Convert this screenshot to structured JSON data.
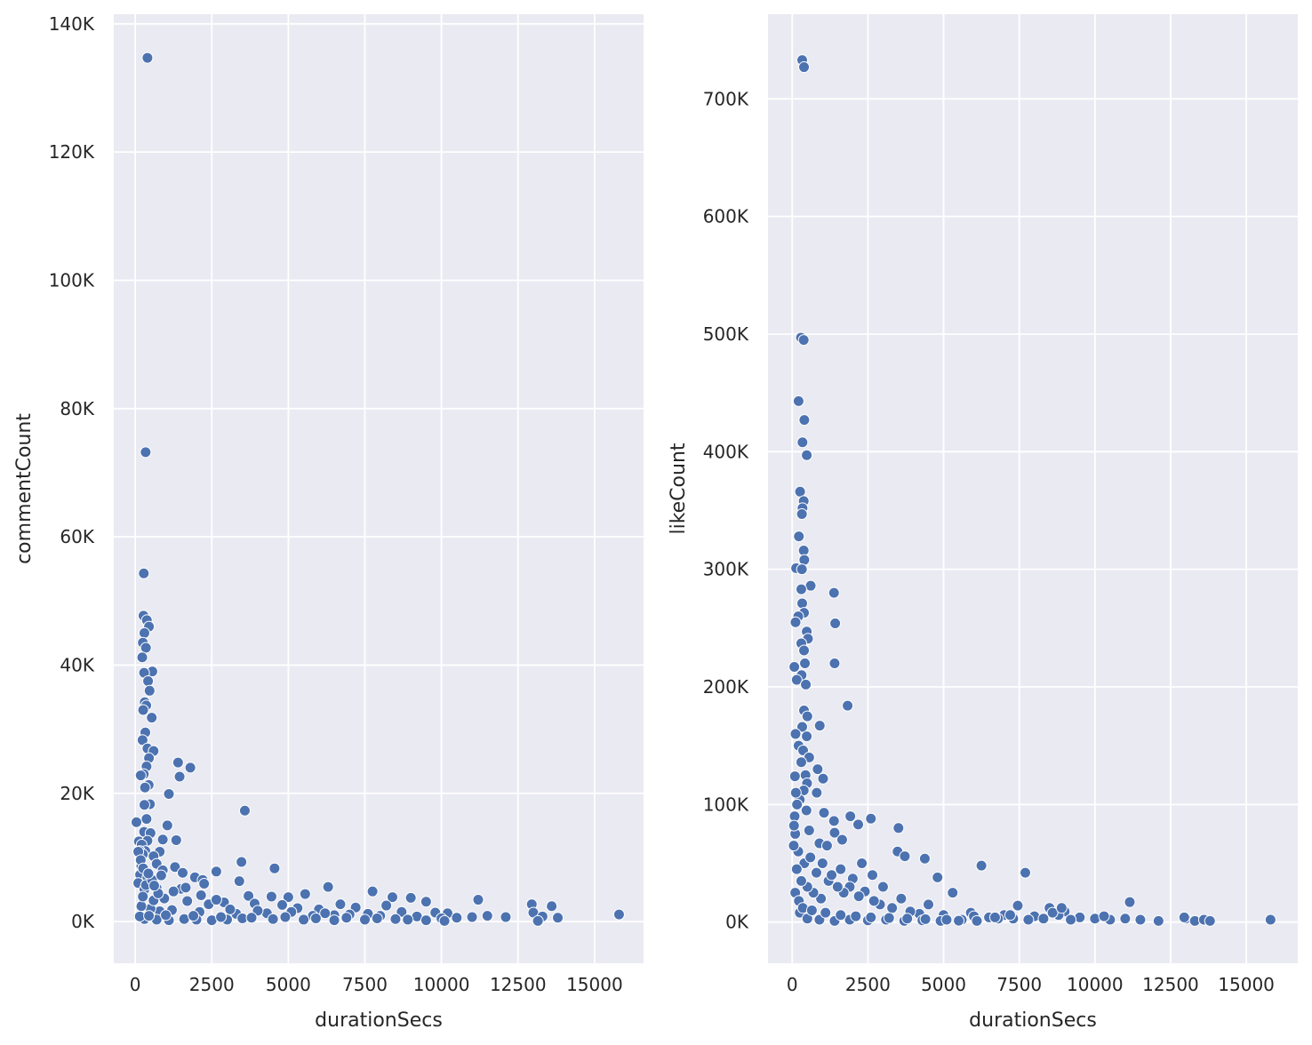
{
  "chart_data": [
    {
      "type": "scatter",
      "xlabel": "durationSecs",
      "ylabel": "commentCount",
      "xlim": [
        -700,
        16600
      ],
      "ylim": [
        -6500,
        141500
      ],
      "xticks": [
        0,
        2500,
        5000,
        7500,
        10000,
        12500,
        15000
      ],
      "xtick_labels": [
        "0",
        "2500",
        "5000",
        "7500",
        "10000",
        "12500",
        "15000"
      ],
      "yticks": [
        0,
        20000,
        40000,
        60000,
        80000,
        100000,
        120000,
        140000
      ],
      "ytick_labels": [
        "0K",
        "20K",
        "40K",
        "60K",
        "80K",
        "100K",
        "120K",
        "140K"
      ],
      "grid": true,
      "color": "#4c72b0",
      "points": [
        [
          400,
          134700
        ],
        [
          340,
          73200
        ],
        [
          280,
          54300
        ],
        [
          270,
          47700
        ],
        [
          380,
          47000
        ],
        [
          450,
          46000
        ],
        [
          300,
          45000
        ],
        [
          250,
          43500
        ],
        [
          350,
          42700
        ],
        [
          230,
          41200
        ],
        [
          560,
          39000
        ],
        [
          290,
          38800
        ],
        [
          420,
          37500
        ],
        [
          470,
          36000
        ],
        [
          310,
          34200
        ],
        [
          360,
          33700
        ],
        [
          260,
          33000
        ],
        [
          540,
          31800
        ],
        [
          330,
          29500
        ],
        [
          240,
          28300
        ],
        [
          400,
          27000
        ],
        [
          600,
          26600
        ],
        [
          450,
          25500
        ],
        [
          1400,
          24800
        ],
        [
          370,
          24200
        ],
        [
          1800,
          24000
        ],
        [
          280,
          23000
        ],
        [
          180,
          22800
        ],
        [
          1450,
          22600
        ],
        [
          440,
          21300
        ],
        [
          320,
          20900
        ],
        [
          1100,
          19900
        ],
        [
          480,
          18300
        ],
        [
          300,
          18200
        ],
        [
          3580,
          17300
        ],
        [
          370,
          16000
        ],
        [
          40,
          15500
        ],
        [
          1050,
          15000
        ],
        [
          290,
          14000
        ],
        [
          500,
          13800
        ],
        [
          120,
          12500
        ],
        [
          400,
          12600
        ],
        [
          1340,
          12700
        ],
        [
          900,
          12800
        ],
        [
          210,
          12000
        ],
        [
          330,
          11000
        ],
        [
          150,
          11000
        ],
        [
          800,
          10900
        ],
        [
          250,
          10500
        ],
        [
          600,
          10200
        ],
        [
          3470,
          9300
        ],
        [
          700,
          9000
        ],
        [
          200,
          8700
        ],
        [
          4550,
          8300
        ],
        [
          900,
          8000
        ],
        [
          1300,
          8500
        ],
        [
          2650,
          7800
        ],
        [
          1550,
          7600
        ],
        [
          160,
          7300
        ],
        [
          1950,
          6900
        ],
        [
          400,
          6900
        ],
        [
          2200,
          6500
        ],
        [
          3400,
          6300
        ],
        [
          100,
          6000
        ],
        [
          2250,
          5900
        ],
        [
          6300,
          5400
        ],
        [
          700,
          5200
        ],
        [
          1500,
          5100
        ],
        [
          300,
          5000
        ],
        [
          7750,
          4700
        ],
        [
          5550,
          4300
        ],
        [
          3700,
          4000
        ],
        [
          4450,
          3900
        ],
        [
          5000,
          3800
        ],
        [
          8400,
          3800
        ],
        [
          9000,
          3700
        ],
        [
          11200,
          3400
        ],
        [
          9500,
          3100
        ],
        [
          12950,
          2700
        ],
        [
          13600,
          2400
        ],
        [
          2900,
          3000
        ],
        [
          3900,
          2800
        ],
        [
          6700,
          2700
        ],
        [
          7200,
          2200
        ],
        [
          8200,
          2500
        ],
        [
          4800,
          2600
        ],
        [
          5300,
          2100
        ],
        [
          6000,
          1900
        ],
        [
          9800,
          1400
        ],
        [
          10200,
          1300
        ],
        [
          13000,
          1400
        ],
        [
          15800,
          1100
        ],
        [
          12100,
          700
        ],
        [
          11500,
          900
        ],
        [
          10500,
          600
        ],
        [
          11000,
          700
        ],
        [
          13800,
          600
        ],
        [
          13300,
          800
        ],
        [
          13150,
          100
        ],
        [
          8700,
          1500
        ],
        [
          7600,
          1200
        ],
        [
          6500,
          1000
        ],
        [
          5800,
          900
        ],
        [
          4300,
          1300
        ],
        [
          3300,
          1200
        ],
        [
          2100,
          1500
        ],
        [
          1200,
          1800
        ],
        [
          800,
          1600
        ],
        [
          500,
          2000
        ],
        [
          200,
          2400
        ],
        [
          600,
          3300
        ],
        [
          950,
          3600
        ],
        [
          1700,
          3200
        ],
        [
          2400,
          2700
        ],
        [
          3100,
          1900
        ],
        [
          4000,
          1700
        ],
        [
          5100,
          1500
        ],
        [
          6200,
          1300
        ],
        [
          7000,
          1100
        ],
        [
          8000,
          900
        ],
        [
          9200,
          800
        ],
        [
          10000,
          500
        ],
        [
          300,
          400
        ],
        [
          700,
          300
        ],
        [
          1100,
          200
        ],
        [
          1600,
          400
        ],
        [
          2000,
          300
        ],
        [
          2500,
          200
        ],
        [
          3000,
          300
        ],
        [
          3500,
          500
        ],
        [
          4500,
          400
        ],
        [
          5500,
          300
        ],
        [
          6500,
          200
        ],
        [
          7500,
          300
        ],
        [
          8500,
          400
        ],
        [
          9500,
          200
        ],
        [
          10100,
          100
        ],
        [
          150,
          800
        ],
        [
          450,
          900
        ],
        [
          1000,
          1000
        ],
        [
          1900,
          900
        ],
        [
          2800,
          700
        ],
        [
          3800,
          600
        ],
        [
          4900,
          700
        ],
        [
          5900,
          500
        ],
        [
          6900,
          600
        ],
        [
          7900,
          500
        ],
        [
          8900,
          300
        ],
        [
          250,
          3900
        ],
        [
          350,
          5700
        ],
        [
          550,
          6500
        ],
        [
          750,
          4400
        ],
        [
          1250,
          4700
        ],
        [
          1650,
          5300
        ],
        [
          2150,
          4100
        ],
        [
          2650,
          3400
        ],
        [
          100,
          10900
        ],
        [
          180,
          9600
        ],
        [
          260,
          8300
        ],
        [
          430,
          7500
        ],
        [
          620,
          5600
        ],
        [
          850,
          7200
        ]
      ]
    },
    {
      "type": "scatter",
      "xlabel": "durationSecs",
      "ylabel": "likeCount",
      "xlim": [
        -800,
        16700
      ],
      "ylim": [
        -35000,
        772000
      ],
      "xticks": [
        0,
        2500,
        5000,
        7500,
        10000,
        12500,
        15000
      ],
      "xtick_labels": [
        "0",
        "2500",
        "5000",
        "7500",
        "10000",
        "12500",
        "15000"
      ],
      "yticks": [
        0,
        100000,
        200000,
        300000,
        400000,
        500000,
        600000,
        700000
      ],
      "ytick_labels": [
        "0K",
        "100K",
        "200K",
        "300K",
        "400K",
        "500K",
        "600K",
        "700K"
      ],
      "grid": true,
      "color": "#4c72b0",
      "points": [
        [
          330,
          733000
        ],
        [
          390,
          727000
        ],
        [
          290,
          497000
        ],
        [
          380,
          495000
        ],
        [
          210,
          443000
        ],
        [
          400,
          427000
        ],
        [
          340,
          408000
        ],
        [
          480,
          397000
        ],
        [
          260,
          366000
        ],
        [
          380,
          358000
        ],
        [
          340,
          352000
        ],
        [
          320,
          347000
        ],
        [
          220,
          328000
        ],
        [
          380,
          316000
        ],
        [
          400,
          308000
        ],
        [
          130,
          301000
        ],
        [
          320,
          300000
        ],
        [
          610,
          286000
        ],
        [
          300,
          283000
        ],
        [
          1380,
          280000
        ],
        [
          330,
          271000
        ],
        [
          390,
          263000
        ],
        [
          200,
          260000
        ],
        [
          110,
          255000
        ],
        [
          1420,
          254000
        ],
        [
          480,
          247000
        ],
        [
          520,
          241000
        ],
        [
          300,
          237000
        ],
        [
          390,
          231000
        ],
        [
          420,
          220000
        ],
        [
          1400,
          220000
        ],
        [
          70,
          217000
        ],
        [
          310,
          210000
        ],
        [
          150,
          206000
        ],
        [
          450,
          202000
        ],
        [
          1830,
          184000
        ],
        [
          390,
          180000
        ],
        [
          500,
          175000
        ],
        [
          910,
          167000
        ],
        [
          330,
          166000
        ],
        [
          110,
          160000
        ],
        [
          480,
          158000
        ],
        [
          210,
          150000
        ],
        [
          360,
          146000
        ],
        [
          560,
          140000
        ],
        [
          300,
          136000
        ],
        [
          840,
          130000
        ],
        [
          440,
          125000
        ],
        [
          90,
          124000
        ],
        [
          1020,
          122000
        ],
        [
          490,
          118000
        ],
        [
          380,
          112000
        ],
        [
          810,
          110000
        ],
        [
          250,
          104000
        ],
        [
          160,
          100000
        ],
        [
          1050,
          93000
        ],
        [
          470,
          95000
        ],
        [
          1920,
          90000
        ],
        [
          2600,
          88000
        ],
        [
          1380,
          86000
        ],
        [
          2180,
          83000
        ],
        [
          3510,
          80000
        ],
        [
          560,
          78000
        ],
        [
          1400,
          76000
        ],
        [
          1650,
          70000
        ],
        [
          900,
          67000
        ],
        [
          3480,
          60000
        ],
        [
          1150,
          65000
        ],
        [
          3720,
          56000
        ],
        [
          4380,
          54000
        ],
        [
          2300,
          50000
        ],
        [
          6250,
          48000
        ],
        [
          7700,
          42000
        ],
        [
          2650,
          40000
        ],
        [
          4800,
          38000
        ],
        [
          1600,
          45000
        ],
        [
          2000,
          37000
        ],
        [
          3000,
          30000
        ],
        [
          5300,
          25000
        ],
        [
          11150,
          17000
        ],
        [
          7450,
          14000
        ],
        [
          8500,
          12000
        ],
        [
          9000,
          9000
        ],
        [
          5900,
          8000
        ],
        [
          4500,
          15000
        ],
        [
          3600,
          20000
        ],
        [
          2400,
          26000
        ],
        [
          1900,
          30000
        ],
        [
          1200,
          35000
        ],
        [
          800,
          42000
        ],
        [
          400,
          50000
        ],
        [
          200,
          60000
        ],
        [
          100,
          75000
        ],
        [
          600,
          55000
        ],
        [
          1000,
          50000
        ],
        [
          1300,
          40000
        ],
        [
          6000,
          5000
        ],
        [
          6500,
          4000
        ],
        [
          7000,
          6000
        ],
        [
          7300,
          3000
        ],
        [
          8000,
          5000
        ],
        [
          8800,
          6000
        ],
        [
          9500,
          4000
        ],
        [
          10000,
          3000
        ],
        [
          10500,
          2000
        ],
        [
          11000,
          3000
        ],
        [
          11500,
          2000
        ],
        [
          12100,
          1000
        ],
        [
          13000,
          3000
        ],
        [
          13300,
          1000
        ],
        [
          13600,
          2000
        ],
        [
          13800,
          1000
        ],
        [
          15800,
          2000
        ],
        [
          12950,
          4000
        ],
        [
          10300,
          5000
        ],
        [
          9200,
          2000
        ],
        [
          8300,
          3000
        ],
        [
          7800,
          2000
        ],
        [
          6800,
          3000
        ],
        [
          5600,
          2000
        ],
        [
          5000,
          6000
        ],
        [
          4200,
          7000
        ],
        [
          3900,
          9000
        ],
        [
          3300,
          12000
        ],
        [
          2900,
          15000
        ],
        [
          2700,
          18000
        ],
        [
          2200,
          22000
        ],
        [
          1700,
          25000
        ],
        [
          1500,
          30000
        ],
        [
          950,
          20000
        ],
        [
          700,
          25000
        ],
        [
          500,
          30000
        ],
        [
          300,
          35000
        ],
        [
          150,
          45000
        ],
        [
          80,
          90000
        ],
        [
          50,
          65000
        ],
        [
          120,
          110000
        ],
        [
          60,
          82000
        ],
        [
          250,
          8000
        ],
        [
          500,
          3000
        ],
        [
          900,
          2000
        ],
        [
          1400,
          1000
        ],
        [
          1900,
          2000
        ],
        [
          2500,
          1500
        ],
        [
          3100,
          2000
        ],
        [
          3700,
          1000
        ],
        [
          4300,
          1500
        ],
        [
          4900,
          1000
        ],
        [
          5500,
          1200
        ],
        [
          6100,
          1000
        ],
        [
          100,
          25000
        ],
        [
          220,
          18000
        ],
        [
          350,
          12000
        ],
        [
          650,
          10000
        ],
        [
          1100,
          8000
        ],
        [
          1600,
          6000
        ],
        [
          2100,
          5000
        ],
        [
          2600,
          4000
        ],
        [
          3200,
          3500
        ],
        [
          3800,
          3000
        ],
        [
          4400,
          2500
        ],
        [
          5100,
          2000
        ],
        [
          8600,
          8000
        ],
        [
          8900,
          12000
        ],
        [
          7200,
          6000
        ],
        [
          6700,
          4000
        ]
      ]
    }
  ]
}
